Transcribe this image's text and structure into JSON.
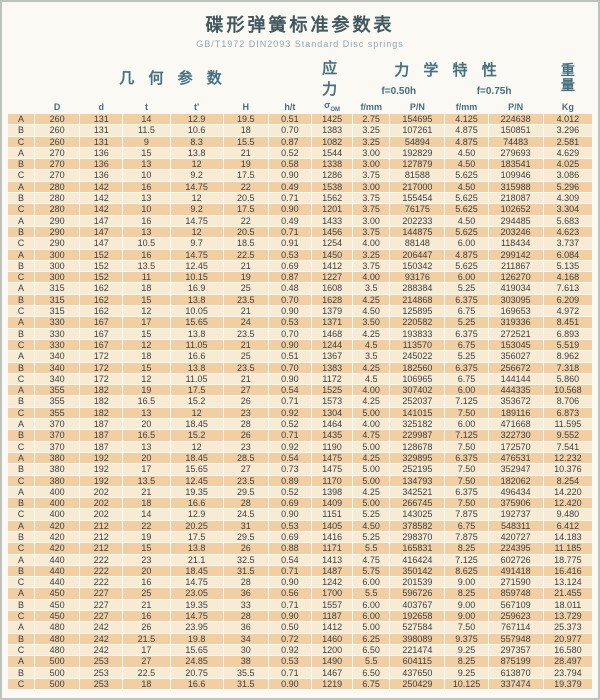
{
  "title": "碟形弹簧标准参数表",
  "subtitle": "GB/T1972  DIN2093  Standard  Disc springs",
  "colors": {
    "header_text": "#44707f",
    "row_dark": "#f2cfa2",
    "row_light": "#f8ebd3",
    "cell_text": "#3a3f44",
    "page_bg": "#faf9f4"
  },
  "table": {
    "group_headers": {
      "geometry": "几 何 参 数",
      "stress": "应 力",
      "mechanical": "力 学 特 性",
      "weight_top": "重",
      "weight_bottom": "量"
    },
    "sub_headers": {
      "f050": "f=0.50h",
      "f075": "f=0.75h"
    },
    "stress_sub": "OM",
    "columns": [
      "D",
      "d",
      "t",
      "t'",
      "H",
      "h/t",
      "σ",
      "f/mm",
      "P/N",
      "f/mm",
      "P/N",
      "Kg"
    ],
    "col_keys": [
      "row-type-label",
      "cell-D",
      "cell-d",
      "cell-t",
      "cell-t-prime",
      "cell-H",
      "cell-h-over-t",
      "cell-sigma-om",
      "cell-f050-f",
      "cell-f050-p",
      "cell-f075-f",
      "cell-f075-p",
      "cell-kg"
    ],
    "rows": [
      [
        "A",
        "260",
        "131",
        "14",
        "12.9",
        "19.5",
        "0.51",
        "1425",
        "2.75",
        "154695",
        "4.125",
        "224638",
        "4.012"
      ],
      [
        "B",
        "260",
        "131",
        "11.5",
        "10.6",
        "18",
        "0.70",
        "1383",
        "3.25",
        "107261",
        "4.875",
        "150851",
        "3.296"
      ],
      [
        "C",
        "260",
        "131",
        "9",
        "8.3",
        "15.5",
        "0.87",
        "1082",
        "3.25",
        "54894",
        "4.875",
        "74483",
        "2.581"
      ],
      [
        "A",
        "270",
        "136",
        "15",
        "13.8",
        "21",
        "0.52",
        "1544",
        "3.00",
        "192829",
        "4.50",
        "279693",
        "4.629"
      ],
      [
        "B",
        "270",
        "136",
        "13",
        "12",
        "19",
        "0.58",
        "1338",
        "3.00",
        "127879",
        "4.50",
        "183541",
        "4.025"
      ],
      [
        "C",
        "270",
        "136",
        "10",
        "9.2",
        "17.5",
        "0.90",
        "1286",
        "3.75",
        "81588",
        "5.625",
        "109946",
        "3.086"
      ],
      [
        "A",
        "280",
        "142",
        "16",
        "14.75",
        "22",
        "0.49",
        "1538",
        "3.00",
        "217000",
        "4.50",
        "315988",
        "5.296"
      ],
      [
        "B",
        "280",
        "142",
        "13",
        "12",
        "20.5",
        "0.71",
        "1562",
        "3.75",
        "155454",
        "5.625",
        "218087",
        "4.309"
      ],
      [
        "C",
        "280",
        "142",
        "10",
        "9.2",
        "17.5",
        "0.90",
        "1201",
        "3.75",
        "76175",
        "5.625",
        "102652",
        "3.304"
      ],
      [
        "A",
        "290",
        "147",
        "16",
        "14.75",
        "22",
        "0.49",
        "1433",
        "3.00",
        "202233",
        "4.50",
        "294485",
        "5.683"
      ],
      [
        "B",
        "290",
        "147",
        "13",
        "12",
        "20.5",
        "0.71",
        "1456",
        "3.75",
        "144875",
        "5.625",
        "203246",
        "4.623"
      ],
      [
        "C",
        "290",
        "147",
        "10.5",
        "9.7",
        "18.5",
        "0.91",
        "1254",
        "4.00",
        "88148",
        "6.00",
        "118434",
        "3.737"
      ],
      [
        "A",
        "300",
        "152",
        "16",
        "14.75",
        "22.5",
        "0.53",
        "1450",
        "3.25",
        "206447",
        "4.875",
        "299142",
        "6.084"
      ],
      [
        "B",
        "300",
        "152",
        "13.5",
        "12.45",
        "21",
        "0.69",
        "1412",
        "3.75",
        "150342",
        "5.625",
        "211867",
        "5.135"
      ],
      [
        "C",
        "300",
        "152",
        "11",
        "10.15",
        "19",
        "0.87",
        "1227",
        "4.00",
        "93176",
        "6.00",
        "126270",
        "4.168"
      ],
      [
        "A",
        "315",
        "162",
        "18",
        "16.9",
        "25",
        "0.48",
        "1608",
        "3.5",
        "288384",
        "5.25",
        "419034",
        "7.613"
      ],
      [
        "B",
        "315",
        "162",
        "15",
        "13.8",
        "23.5",
        "0.70",
        "1628",
        "4.25",
        "214868",
        "6.375",
        "303095",
        "6.209"
      ],
      [
        "C",
        "315",
        "162",
        "12",
        "10.05",
        "21",
        "0.90",
        "1379",
        "4.50",
        "125895",
        "6.75",
        "169653",
        "4.972"
      ],
      [
        "A",
        "330",
        "167",
        "17",
        "15.65",
        "24",
        "0.53",
        "1371",
        "3.50",
        "220582",
        "5.25",
        "319336",
        "8.451"
      ],
      [
        "B",
        "330",
        "167",
        "15",
        "13.8",
        "23.5",
        "0.70",
        "1468",
        "4.25",
        "193833",
        "6.375",
        "272521",
        "6.893"
      ],
      [
        "C",
        "330",
        "167",
        "12",
        "11.05",
        "21",
        "0.90",
        "1244",
        "4.5",
        "113570",
        "6.75",
        "153045",
        "5.519"
      ],
      [
        "A",
        "340",
        "172",
        "18",
        "16.6",
        "25",
        "0.51",
        "1367",
        "3.5",
        "245022",
        "5.25",
        "356027",
        "8.962"
      ],
      [
        "B",
        "340",
        "172",
        "15",
        "13.8",
        "23.5",
        "0.70",
        "1383",
        "4.25",
        "182560",
        "6.375",
        "256672",
        "7.318"
      ],
      [
        "C",
        "340",
        "172",
        "12",
        "11.05",
        "21",
        "0.90",
        "1172",
        "4.5",
        "106965",
        "6.75",
        "144144",
        "5.860"
      ],
      [
        "A",
        "355",
        "182",
        "19",
        "17.5",
        "27",
        "0.54",
        "1525",
        "4.00",
        "307402",
        "6.00",
        "444335",
        "10.568"
      ],
      [
        "B",
        "355",
        "182",
        "16.5",
        "15.2",
        "26",
        "0.71",
        "1573",
        "4.25",
        "252037",
        "7.125",
        "353672",
        "8.706"
      ],
      [
        "C",
        "355",
        "182",
        "13",
        "12",
        "23",
        "0.92",
        "1304",
        "5.00",
        "141015",
        "7.50",
        "189116",
        "6.873"
      ],
      [
        "A",
        "370",
        "187",
        "20",
        "18.45",
        "28",
        "0.52",
        "1464",
        "4.00",
        "325182",
        "6.00",
        "471668",
        "11.595"
      ],
      [
        "B",
        "370",
        "187",
        "16.5",
        "15.2",
        "26",
        "0.71",
        "1435",
        "4.75",
        "229987",
        "7.125",
        "322730",
        "9.552"
      ],
      [
        "C",
        "370",
        "187",
        "13",
        "12",
        "23",
        "0.92",
        "1190",
        "5.00",
        "128678",
        "7.50",
        "172570",
        "7.541"
      ],
      [
        "A",
        "380",
        "192",
        "20",
        "18.45",
        "28.5",
        "0.54",
        "1475",
        "4.25",
        "329895",
        "6.375",
        "476531",
        "12.232"
      ],
      [
        "B",
        "380",
        "192",
        "17",
        "15.65",
        "27",
        "0.73",
        "1475",
        "5.00",
        "252195",
        "7.50",
        "352947",
        "10.376"
      ],
      [
        "C",
        "380",
        "192",
        "13.5",
        "12.45",
        "23.5",
        "0.89",
        "1170",
        "5.00",
        "134793",
        "7.50",
        "182062",
        "8.254"
      ],
      [
        "A",
        "400",
        "202",
        "21",
        "19.35",
        "29.5",
        "0.52",
        "1398",
        "4.25",
        "342521",
        "6.375",
        "496434",
        "14.220"
      ],
      [
        "B",
        "400",
        "202",
        "18",
        "16.6",
        "28",
        "0.69",
        "1409",
        "5.00",
        "266745",
        "7.50",
        "375906",
        "12.420"
      ],
      [
        "C",
        "400",
        "202",
        "14",
        "12.9",
        "24.5",
        "0.90",
        "1151",
        "5.25",
        "143025",
        "7.875",
        "192737",
        "9.480"
      ],
      [
        "A",
        "420",
        "212",
        "22",
        "20.25",
        "31",
        "0.53",
        "1405",
        "4.50",
        "378582",
        "6.75",
        "548311",
        "6.412"
      ],
      [
        "B",
        "420",
        "212",
        "19",
        "17.5",
        "29.5",
        "0.69",
        "1416",
        "5.25",
        "298370",
        "7.875",
        "420727",
        "14.183"
      ],
      [
        "C",
        "420",
        "212",
        "15",
        "13.8",
        "26",
        "0.88",
        "1171",
        "5.5",
        "165831",
        "8.25",
        "224395",
        "11.185"
      ],
      [
        "A",
        "440",
        "222",
        "23",
        "21.1",
        "32.5",
        "0.54",
        "1413",
        "4.75",
        "416424",
        "7.125",
        "602726",
        "18.775"
      ],
      [
        "B",
        "440",
        "222",
        "20",
        "18.45",
        "31.5",
        "0.71",
        "1487",
        "5.75",
        "350142",
        "8.625",
        "491418",
        "16.416"
      ],
      [
        "C",
        "440",
        "222",
        "16",
        "14.75",
        "28",
        "0.90",
        "1242",
        "6.00",
        "201539",
        "9.00",
        "271590",
        "13.124"
      ],
      [
        "A",
        "450",
        "227",
        "25",
        "23.05",
        "36",
        "0.56",
        "1700",
        "5.5",
        "596726",
        "8.25",
        "859748",
        "21.455"
      ],
      [
        "B",
        "450",
        "227",
        "21",
        "19.35",
        "33",
        "0.71",
        "1557",
        "6.00",
        "403767",
        "9.00",
        "567109",
        "18.011"
      ],
      [
        "C",
        "450",
        "227",
        "16",
        "14.75",
        "28",
        "0.90",
        "1187",
        "6.00",
        "192658",
        "9.00",
        "259623",
        "13.729"
      ],
      [
        "A",
        "480",
        "242",
        "26",
        "23.95",
        "36",
        "0.50",
        "1412",
        "5.00",
        "527584",
        "7.50",
        "767114",
        "25.373"
      ],
      [
        "B",
        "480",
        "242",
        "21.5",
        "19.8",
        "34",
        "0.72",
        "1460",
        "6.25",
        "398089",
        "9.375",
        "557948",
        "20.977"
      ],
      [
        "C",
        "480",
        "242",
        "17",
        "15.65",
        "30",
        "0.92",
        "1200",
        "6.50",
        "221474",
        "9.25",
        "297357",
        "16.580"
      ],
      [
        "A",
        "500",
        "253",
        "27",
        "24.85",
        "38",
        "0.53",
        "1490",
        "5.5",
        "604115",
        "8.25",
        "875199",
        "28.497"
      ],
      [
        "B",
        "500",
        "253",
        "22.5",
        "20.75",
        "35.5",
        "0.71",
        "1467",
        "6.50",
        "437650",
        "9.25",
        "613870",
        "23.794"
      ],
      [
        "C",
        "500",
        "253",
        "18",
        "16.6",
        "31.5",
        "0.90",
        "1219",
        "6.75",
        "250429",
        "10.125",
        "337474",
        "19.379"
      ]
    ]
  }
}
